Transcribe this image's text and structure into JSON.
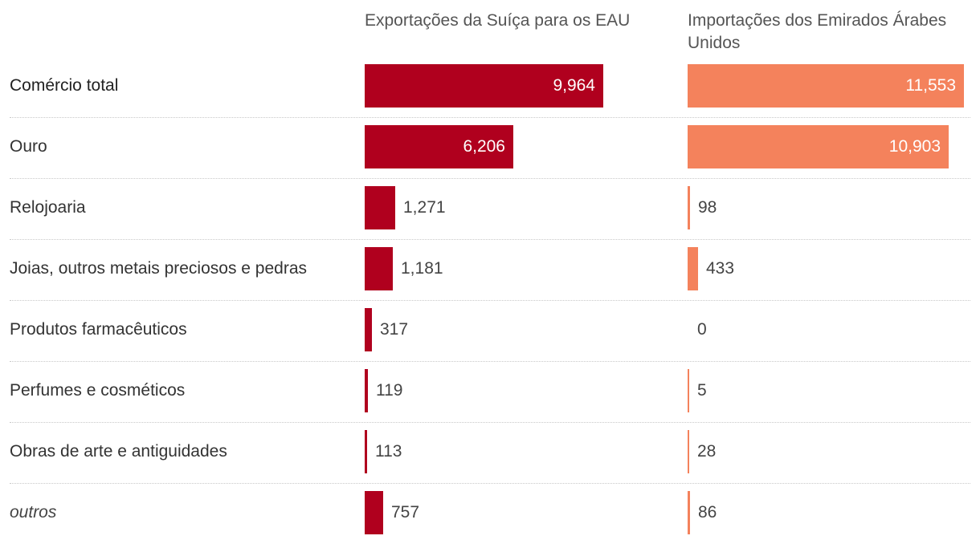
{
  "chart_data": {
    "type": "bar",
    "orientation": "horizontal",
    "categories": [
      "Comércio total",
      "Ouro",
      "Relojoaria",
      "Joias, outros metais preciosos e pedras",
      "Produtos farmacêuticos",
      "Perfumes e cosméticos",
      "Obras de arte e antiguidades",
      "outros"
    ],
    "series": [
      {
        "name": "Exportações da Suíça para os EAU",
        "color": "#b0001e",
        "values": [
          9964,
          6206,
          1271,
          1181,
          317,
          119,
          113,
          757
        ],
        "labels": [
          "9,964",
          "6,206",
          "1,271",
          "1,181",
          "317",
          "119",
          "113",
          "757"
        ]
      },
      {
        "name": "Importações dos Emirados Árabes Unidos",
        "color": "#f4825c",
        "values": [
          11553,
          10903,
          98,
          433,
          0,
          5,
          28,
          86
        ],
        "labels": [
          "11,553",
          "10,903",
          "98",
          "433",
          "0",
          "5",
          "28",
          "86"
        ]
      }
    ]
  }
}
